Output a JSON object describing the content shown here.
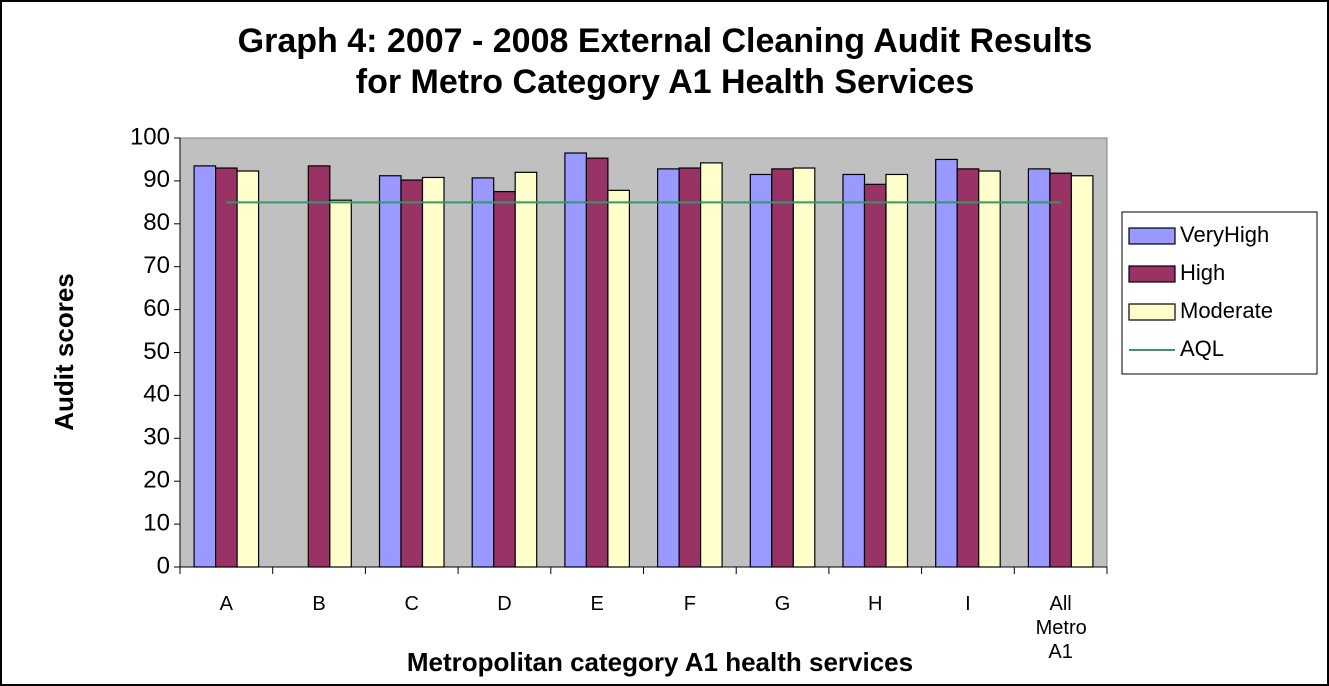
{
  "chart_data": {
    "type": "bar",
    "title": "Graph 4: 2007 - 2008 External Cleaning Audit Results",
    "subtitle": "for Metro Category A1 Health Services",
    "x_label": "Metropolitan category A1 health services",
    "y_label": "Audit scores",
    "categories": [
      "A",
      "B",
      "C",
      "D",
      "E",
      "F",
      "G",
      "H",
      "I",
      "All Metro A1"
    ],
    "series": [
      {
        "name": "VeryHigh",
        "color": "#9999ff",
        "values": [
          93.5,
          null,
          91.2,
          90.7,
          96.5,
          92.8,
          91.5,
          91.5,
          95,
          92.8
        ]
      },
      {
        "name": "High",
        "color": "#993366",
        "values": [
          93,
          93.5,
          90.2,
          87.5,
          95.3,
          93,
          92.8,
          89.2,
          92.8,
          91.8
        ]
      },
      {
        "name": "Moderate",
        "color": "#ffffcc",
        "values": [
          92.3,
          85.5,
          90.8,
          92,
          87.8,
          94.2,
          93,
          91.5,
          92.3,
          91.2
        ]
      },
      {
        "name": "AQL",
        "type": "line",
        "color": "#339966",
        "values": [
          85,
          85,
          85,
          85,
          85,
          85,
          85,
          85,
          85,
          85
        ]
      }
    ],
    "ylim": [
      0,
      100
    ],
    "yticks": [
      0,
      10,
      20,
      30,
      40,
      50,
      60,
      70,
      80,
      90,
      100
    ],
    "grid": false,
    "legend": "right",
    "plot_background": "#c0c0c0"
  }
}
